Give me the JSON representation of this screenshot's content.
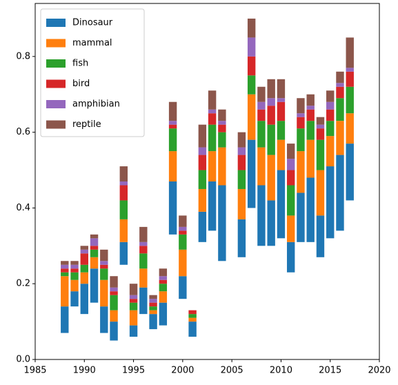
{
  "chart_data": {
    "type": "bar",
    "x": [
      1988,
      1989,
      1990,
      1991,
      1992,
      1993,
      1994,
      1995,
      1996,
      1997,
      1998,
      1999,
      2000,
      2001,
      2002,
      2003,
      2004,
      2006,
      2007,
      2008,
      2009,
      2010,
      2011,
      2012,
      2013,
      2014,
      2015,
      2016,
      2017
    ],
    "bottom": [
      0.07,
      0.14,
      0.12,
      0.15,
      0.07,
      0.05,
      0.25,
      0.06,
      0.12,
      0.08,
      0.09,
      0.33,
      0.16,
      0.06,
      0.31,
      0.34,
      0.26,
      0.27,
      0.4,
      0.3,
      0.3,
      0.32,
      0.23,
      0.31,
      0.31,
      0.27,
      0.32,
      0.34,
      0.42
    ],
    "series": [
      {
        "name": "Dinosaur",
        "color": "#1f77b4",
        "values": [
          0.07,
          0.04,
          0.08,
          0.09,
          0.07,
          0.05,
          0.06,
          0.03,
          0.07,
          0.04,
          0.06,
          0.14,
          0.06,
          0.04,
          0.08,
          0.13,
          0.2,
          0.1,
          0.18,
          0.16,
          0.12,
          0.18,
          0.08,
          0.13,
          0.17,
          0.11,
          0.19,
          0.2,
          0.15
        ]
      },
      {
        "name": "mammal",
        "color": "#ff7f0e",
        "values": [
          0.08,
          0.03,
          0.03,
          0.03,
          0.07,
          0.03,
          0.06,
          0.04,
          0.05,
          0.01,
          0.03,
          0.08,
          0.07,
          0.01,
          0.06,
          0.08,
          0.1,
          0.08,
          0.12,
          0.1,
          0.12,
          0.08,
          0.07,
          0.11,
          0.1,
          0.12,
          0.08,
          0.09,
          0.08
        ]
      },
      {
        "name": "fish",
        "color": "#2ca02c",
        "values": [
          0.01,
          0.02,
          0.02,
          0.02,
          0.03,
          0.04,
          0.05,
          0.02,
          0.04,
          0.01,
          0.02,
          0.06,
          0.04,
          0.01,
          0.05,
          0.07,
          0.04,
          0.05,
          0.05,
          0.07,
          0.08,
          0.05,
          0.08,
          0.06,
          0.05,
          0.08,
          0.04,
          0.06,
          0.07
        ]
      },
      {
        "name": "bird",
        "color": "#d62728",
        "values": [
          0.01,
          0.01,
          0.03,
          0.01,
          0.01,
          0.01,
          0.04,
          0.01,
          0.02,
          0.01,
          0.01,
          0.01,
          0.01,
          0.01,
          0.04,
          0.03,
          0.02,
          0.04,
          0.05,
          0.03,
          0.05,
          0.05,
          0.04,
          0.03,
          0.03,
          0.03,
          0.03,
          0.03,
          0.04
        ]
      },
      {
        "name": "amphibian",
        "color": "#9467bd",
        "values": [
          0.01,
          0.01,
          0.01,
          0.02,
          0.01,
          0.01,
          0.01,
          0.01,
          0.01,
          0.01,
          0.01,
          0.01,
          0.01,
          0,
          0.02,
          0.01,
          0.01,
          0.02,
          0.05,
          0.02,
          0.02,
          0.01,
          0.03,
          0.01,
          0.01,
          0.01,
          0.02,
          0.01,
          0.01
        ]
      },
      {
        "name": "reptile",
        "color": "#8c564b",
        "values": [
          0.01,
          0.01,
          0.01,
          0.01,
          0.03,
          0.03,
          0.04,
          0.03,
          0.04,
          0.01,
          0.02,
          0.05,
          0.03,
          0,
          0.06,
          0.05,
          0.03,
          0.04,
          0.05,
          0.04,
          0.05,
          0.05,
          0.04,
          0.04,
          0.03,
          0.02,
          0.03,
          0.03,
          0.08
        ]
      }
    ],
    "xlim": [
      1985,
      2020
    ],
    "xticks": [
      1985,
      1990,
      1995,
      2000,
      2005,
      2010,
      2015,
      2020
    ],
    "ylim": [
      0,
      0.94
    ],
    "yticks": [
      {
        "value": 0,
        "label": "0.0"
      },
      0.2,
      0.4,
      0.6,
      0.8
    ],
    "legend": "upper left"
  }
}
